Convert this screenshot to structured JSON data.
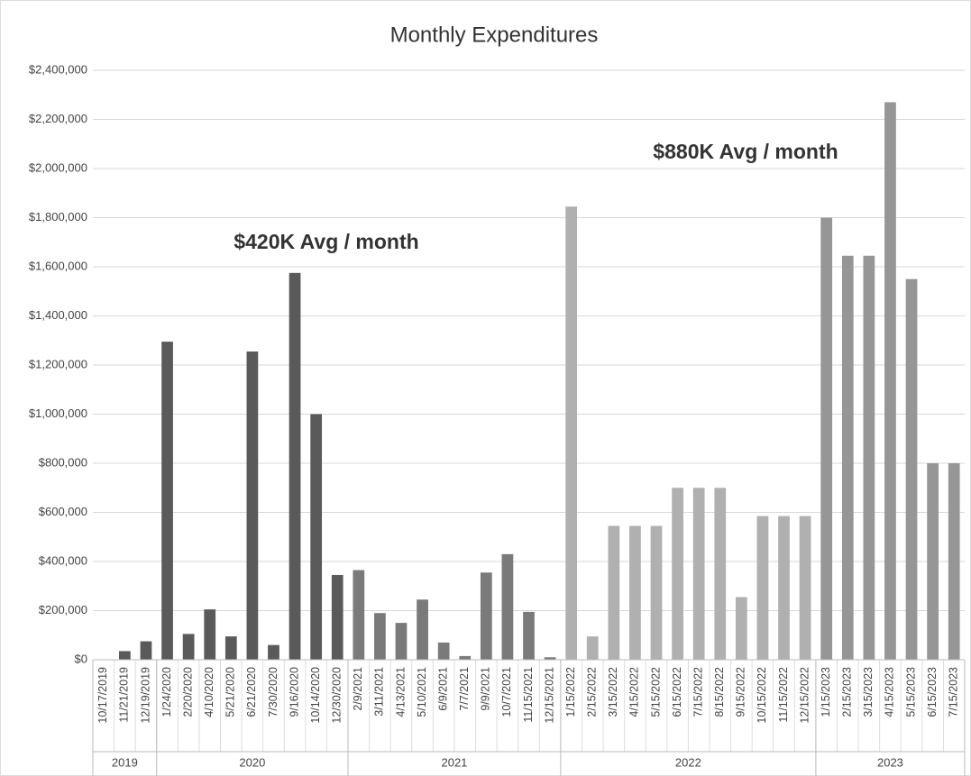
{
  "chart_data": {
    "type": "bar",
    "title": "Monthly Expenditures",
    "annotations": [
      "$420K Avg / month",
      "$880K Avg / month"
    ],
    "groups": [
      {
        "name": "2019",
        "color": "#5a5a5a",
        "categories": [
          "10/17/2019",
          "11/21/2019",
          "12/19/2019"
        ],
        "values": [
          0,
          35000,
          75000
        ]
      },
      {
        "name": "2020",
        "color": "#5a5a5a",
        "categories": [
          "1/24/2020",
          "2/20/2020",
          "4/10/2020",
          "5/21/2020",
          "6/21/2020",
          "7/30/2020",
          "9/16/2020",
          "10/14/2020",
          "12/30/2020"
        ],
        "values": [
          1295000,
          105000,
          205000,
          95000,
          1255000,
          60000,
          1575000,
          1000000,
          345000
        ]
      },
      {
        "name": "2021",
        "color": "#7a7a7a",
        "categories": [
          "2/9/2021",
          "3/11/2021",
          "4/13/2021",
          "5/10/2021",
          "6/9/2021",
          "7/7/2021",
          "9/9/2021",
          "10/7/2021",
          "11/15/2021",
          "12/15/2021"
        ],
        "values": [
          365000,
          190000,
          150000,
          245000,
          70000,
          15000,
          355000,
          430000,
          195000,
          10000
        ]
      },
      {
        "name": "2022",
        "color": "#b0b0b0",
        "categories": [
          "1/15/2022",
          "2/15/2022",
          "3/15/2022",
          "4/15/2022",
          "5/15/2022",
          "6/15/2022",
          "7/15/2022",
          "8/15/2022",
          "9/15/2022",
          "10/15/2022",
          "11/15/2022",
          "12/15/2022"
        ],
        "values": [
          1845000,
          95000,
          545000,
          545000,
          545000,
          700000,
          700000,
          700000,
          255000,
          585000,
          585000,
          585000
        ]
      },
      {
        "name": "2023",
        "color": "#969696",
        "categories": [
          "1/15/2023",
          "2/15/2023",
          "3/15/2023",
          "4/15/2023",
          "5/15/2023",
          "6/15/2023",
          "7/15/2023"
        ],
        "values": [
          1800000,
          1645000,
          1645000,
          2270000,
          1550000,
          800000,
          800000
        ]
      }
    ],
    "ylim": [
      0,
      2400000
    ],
    "yticks": [
      {
        "value": 0,
        "label": "$0"
      },
      {
        "value": 200000,
        "label": "$200,000"
      },
      {
        "value": 400000,
        "label": "$400,000"
      },
      {
        "value": 600000,
        "label": "$600,000"
      },
      {
        "value": 800000,
        "label": "$800,000"
      },
      {
        "value": 1000000,
        "label": "$1,000,000"
      },
      {
        "value": 1200000,
        "label": "$1,200,000"
      },
      {
        "value": 1400000,
        "label": "$1,400,000"
      },
      {
        "value": 1600000,
        "label": "$1,600,000"
      },
      {
        "value": 1800000,
        "label": "$1,800,000"
      },
      {
        "value": 2000000,
        "label": "$2,000,000"
      },
      {
        "value": 2200000,
        "label": "$2,200,000"
      },
      {
        "value": 2400000,
        "label": "$2,400,000"
      }
    ],
    "grid": true
  }
}
